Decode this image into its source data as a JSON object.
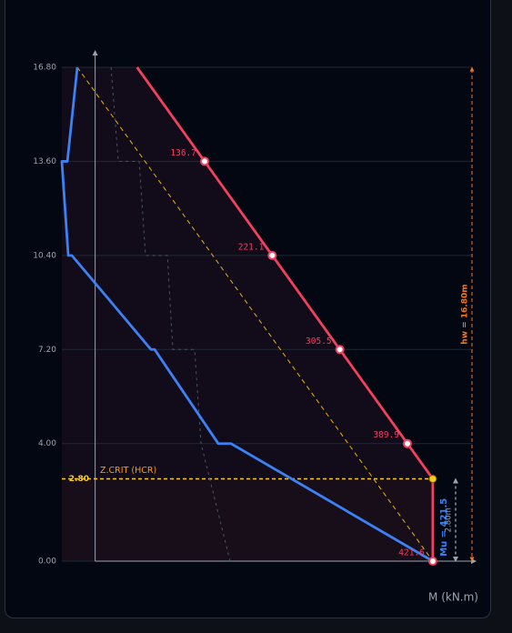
{
  "chart_data": {
    "type": "line",
    "x_label": "M (kN.m)",
    "xlim": [
      -41.6,
      466
    ],
    "ylim": [
      0,
      16.8
    ],
    "yticks": [
      {
        "value": 0,
        "label": "0.00"
      },
      {
        "value": 4,
        "label": "4.00"
      },
      {
        "value": 7.2,
        "label": "7.20"
      },
      {
        "value": 10.4,
        "label": "10.40"
      },
      {
        "value": 13.6,
        "label": "13.60"
      },
      {
        "value": 16.8,
        "label": "16.80"
      }
    ],
    "grid": true,
    "z_crit": {
      "value": 2.8,
      "label": "2.80",
      "name": "Z.CRIT (HCR)",
      "color": "#facc15"
    },
    "series": [
      {
        "color": "#f43f5e",
        "style": "solid",
        "markers": true,
        "x": [
          421.6,
          421.6,
          389.9,
          305.5,
          221.1,
          136.7,
          52.3
        ],
        "values": [
          0,
          2.8,
          4,
          7.2,
          10.4,
          13.6,
          16.8
        ],
        "value_labels": [
          "421.6",
          null,
          "389.9",
          "305.5",
          "221.1",
          "136.7",
          null
        ]
      },
      {
        "color": "#3b82f6",
        "style": "solid",
        "markers": false,
        "x": [
          -22.3,
          -34.7,
          -41.6,
          -33.6,
          -29.1,
          69.7,
          74.3,
          153.7,
          169.6,
          421.6
        ],
        "values": [
          16.8,
          13.6,
          13.6,
          10.4,
          10.4,
          7.2,
          7.2,
          4,
          4,
          0
        ]
      },
      {
        "color": "#4b5563",
        "style": "dashed",
        "markers": false,
        "x": [
          19.8,
          28.9,
          55.0,
          62.9,
          90.2,
          97.0,
          124.2,
          132.2,
          168.5
        ],
        "values": [
          16.8,
          13.6,
          13.6,
          10.4,
          10.4,
          7.2,
          7.2,
          4,
          0
        ]
      },
      {
        "color": "#eab308",
        "style": "dashed",
        "markers": false,
        "x": [
          -22.3,
          421.6
        ],
        "values": [
          16.8,
          0
        ]
      }
    ],
    "annotations": {
      "hw": "hw = 16.80m",
      "hcr": "2.80m",
      "mu": "Mu = 421.5"
    }
  }
}
